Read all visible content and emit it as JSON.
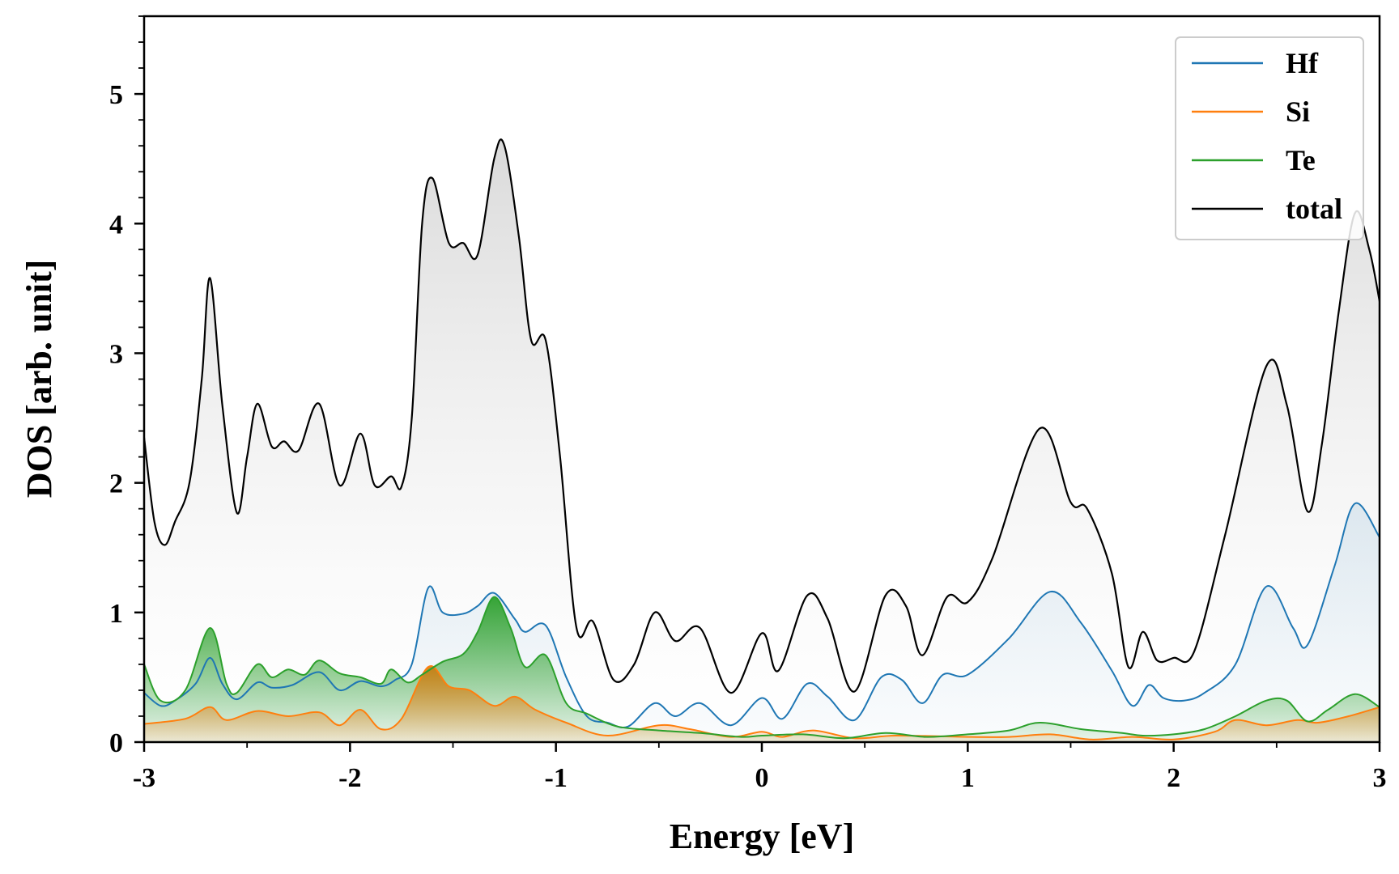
{
  "chart_data": {
    "type": "line",
    "title": "",
    "xlabel": "Energy [eV]",
    "ylabel": "DOS [arb. unit]",
    "xlim": [
      -3,
      3
    ],
    "ylim": [
      0,
      5.6
    ],
    "x_ticks": [
      "-3",
      "-2",
      "-1",
      "0",
      "1",
      "2",
      "3"
    ],
    "y_ticks": [
      "0",
      "1",
      "2",
      "3",
      "4",
      "5"
    ],
    "grid": false,
    "legend_position": "top-right",
    "fill_under_curves": true,
    "series": [
      {
        "name": "Hf",
        "color": "#1f77b4",
        "points": [
          [
            -3.0,
            0.38
          ],
          [
            -2.92,
            0.28
          ],
          [
            -2.85,
            0.32
          ],
          [
            -2.75,
            0.45
          ],
          [
            -2.68,
            0.65
          ],
          [
            -2.62,
            0.45
          ],
          [
            -2.55,
            0.33
          ],
          [
            -2.45,
            0.46
          ],
          [
            -2.38,
            0.42
          ],
          [
            -2.28,
            0.44
          ],
          [
            -2.15,
            0.54
          ],
          [
            -2.05,
            0.4
          ],
          [
            -1.95,
            0.47
          ],
          [
            -1.85,
            0.43
          ],
          [
            -1.78,
            0.48
          ],
          [
            -1.7,
            0.6
          ],
          [
            -1.62,
            1.19
          ],
          [
            -1.55,
            1.0
          ],
          [
            -1.45,
            0.99
          ],
          [
            -1.38,
            1.05
          ],
          [
            -1.3,
            1.15
          ],
          [
            -1.2,
            0.95
          ],
          [
            -1.15,
            0.85
          ],
          [
            -1.05,
            0.9
          ],
          [
            -0.95,
            0.5
          ],
          [
            -0.85,
            0.2
          ],
          [
            -0.75,
            0.15
          ],
          [
            -0.65,
            0.12
          ],
          [
            -0.52,
            0.3
          ],
          [
            -0.42,
            0.2
          ],
          [
            -0.3,
            0.3
          ],
          [
            -0.15,
            0.13
          ],
          [
            0.0,
            0.34
          ],
          [
            0.1,
            0.18
          ],
          [
            0.22,
            0.45
          ],
          [
            0.32,
            0.35
          ],
          [
            0.45,
            0.17
          ],
          [
            0.58,
            0.5
          ],
          [
            0.68,
            0.48
          ],
          [
            0.78,
            0.3
          ],
          [
            0.88,
            0.52
          ],
          [
            1.0,
            0.52
          ],
          [
            1.2,
            0.8
          ],
          [
            1.4,
            1.16
          ],
          [
            1.55,
            0.92
          ],
          [
            1.7,
            0.55
          ],
          [
            1.8,
            0.28
          ],
          [
            1.88,
            0.44
          ],
          [
            1.95,
            0.34
          ],
          [
            2.05,
            0.32
          ],
          [
            2.15,
            0.38
          ],
          [
            2.3,
            0.6
          ],
          [
            2.45,
            1.2
          ],
          [
            2.58,
            0.88
          ],
          [
            2.65,
            0.75
          ],
          [
            2.78,
            1.35
          ],
          [
            2.88,
            1.84
          ],
          [
            3.0,
            1.58
          ]
        ]
      },
      {
        "name": "Si",
        "color": "#ff7f0e",
        "points": [
          [
            -3.0,
            0.14
          ],
          [
            -2.8,
            0.18
          ],
          [
            -2.68,
            0.27
          ],
          [
            -2.6,
            0.17
          ],
          [
            -2.45,
            0.24
          ],
          [
            -2.3,
            0.2
          ],
          [
            -2.15,
            0.23
          ],
          [
            -2.05,
            0.13
          ],
          [
            -1.95,
            0.25
          ],
          [
            -1.85,
            0.1
          ],
          [
            -1.75,
            0.18
          ],
          [
            -1.62,
            0.58
          ],
          [
            -1.52,
            0.43
          ],
          [
            -1.42,
            0.4
          ],
          [
            -1.3,
            0.28
          ],
          [
            -1.2,
            0.35
          ],
          [
            -1.1,
            0.25
          ],
          [
            -0.95,
            0.15
          ],
          [
            -0.75,
            0.05
          ],
          [
            -0.5,
            0.13
          ],
          [
            -0.35,
            0.1
          ],
          [
            -0.15,
            0.04
          ],
          [
            0.0,
            0.08
          ],
          [
            0.1,
            0.04
          ],
          [
            0.25,
            0.09
          ],
          [
            0.45,
            0.03
          ],
          [
            0.65,
            0.05
          ],
          [
            1.0,
            0.04
          ],
          [
            1.2,
            0.04
          ],
          [
            1.4,
            0.06
          ],
          [
            1.6,
            0.02
          ],
          [
            1.8,
            0.04
          ],
          [
            2.0,
            0.02
          ],
          [
            2.2,
            0.08
          ],
          [
            2.3,
            0.17
          ],
          [
            2.45,
            0.13
          ],
          [
            2.6,
            0.17
          ],
          [
            2.7,
            0.15
          ],
          [
            2.85,
            0.2
          ],
          [
            3.0,
            0.27
          ]
        ]
      },
      {
        "name": "Te",
        "color": "#2ca02c",
        "points": [
          [
            -3.0,
            0.6
          ],
          [
            -2.92,
            0.32
          ],
          [
            -2.8,
            0.4
          ],
          [
            -2.68,
            0.88
          ],
          [
            -2.6,
            0.45
          ],
          [
            -2.55,
            0.38
          ],
          [
            -2.45,
            0.6
          ],
          [
            -2.38,
            0.5
          ],
          [
            -2.3,
            0.56
          ],
          [
            -2.22,
            0.52
          ],
          [
            -2.15,
            0.63
          ],
          [
            -2.05,
            0.53
          ],
          [
            -1.95,
            0.5
          ],
          [
            -1.85,
            0.45
          ],
          [
            -1.8,
            0.56
          ],
          [
            -1.72,
            0.46
          ],
          [
            -1.65,
            0.52
          ],
          [
            -1.55,
            0.62
          ],
          [
            -1.45,
            0.68
          ],
          [
            -1.38,
            0.85
          ],
          [
            -1.3,
            1.12
          ],
          [
            -1.22,
            0.88
          ],
          [
            -1.15,
            0.58
          ],
          [
            -1.05,
            0.67
          ],
          [
            -0.95,
            0.3
          ],
          [
            -0.85,
            0.22
          ],
          [
            -0.7,
            0.12
          ],
          [
            -0.5,
            0.09
          ],
          [
            -0.3,
            0.07
          ],
          [
            -0.1,
            0.04
          ],
          [
            0.0,
            0.05
          ],
          [
            0.2,
            0.06
          ],
          [
            0.4,
            0.03
          ],
          [
            0.6,
            0.07
          ],
          [
            0.8,
            0.04
          ],
          [
            1.0,
            0.06
          ],
          [
            1.2,
            0.09
          ],
          [
            1.35,
            0.15
          ],
          [
            1.55,
            0.1
          ],
          [
            1.75,
            0.07
          ],
          [
            1.85,
            0.05
          ],
          [
            2.0,
            0.06
          ],
          [
            2.15,
            0.1
          ],
          [
            2.3,
            0.2
          ],
          [
            2.45,
            0.32
          ],
          [
            2.55,
            0.32
          ],
          [
            2.65,
            0.16
          ],
          [
            2.75,
            0.25
          ],
          [
            2.88,
            0.37
          ],
          [
            3.0,
            0.27
          ]
        ]
      },
      {
        "name": "total",
        "color": "#000000",
        "points": [
          [
            -3.0,
            2.35
          ],
          [
            -2.95,
            1.7
          ],
          [
            -2.9,
            1.52
          ],
          [
            -2.85,
            1.7
          ],
          [
            -2.78,
            2.0
          ],
          [
            -2.72,
            2.8
          ],
          [
            -2.68,
            3.58
          ],
          [
            -2.62,
            2.6
          ],
          [
            -2.55,
            1.77
          ],
          [
            -2.5,
            2.2
          ],
          [
            -2.45,
            2.61
          ],
          [
            -2.38,
            2.28
          ],
          [
            -2.32,
            2.32
          ],
          [
            -2.25,
            2.25
          ],
          [
            -2.15,
            2.61
          ],
          [
            -2.05,
            1.98
          ],
          [
            -1.95,
            2.38
          ],
          [
            -1.88,
            1.98
          ],
          [
            -1.8,
            2.05
          ],
          [
            -1.75,
            1.97
          ],
          [
            -1.7,
            2.5
          ],
          [
            -1.65,
            4.0
          ],
          [
            -1.6,
            4.35
          ],
          [
            -1.52,
            3.85
          ],
          [
            -1.45,
            3.85
          ],
          [
            -1.38,
            3.76
          ],
          [
            -1.3,
            4.5
          ],
          [
            -1.25,
            4.6
          ],
          [
            -1.18,
            3.9
          ],
          [
            -1.12,
            3.1
          ],
          [
            -1.05,
            3.1
          ],
          [
            -0.98,
            2.2
          ],
          [
            -0.9,
            0.88
          ],
          [
            -0.82,
            0.93
          ],
          [
            -0.72,
            0.48
          ],
          [
            -0.62,
            0.6
          ],
          [
            -0.52,
            1.0
          ],
          [
            -0.42,
            0.78
          ],
          [
            -0.3,
            0.88
          ],
          [
            -0.15,
            0.38
          ],
          [
            0.0,
            0.84
          ],
          [
            0.08,
            0.55
          ],
          [
            0.22,
            1.13
          ],
          [
            0.32,
            0.95
          ],
          [
            0.45,
            0.39
          ],
          [
            0.6,
            1.13
          ],
          [
            0.7,
            1.05
          ],
          [
            0.78,
            0.67
          ],
          [
            0.9,
            1.12
          ],
          [
            1.0,
            1.08
          ],
          [
            1.12,
            1.42
          ],
          [
            1.35,
            2.42
          ],
          [
            1.5,
            1.85
          ],
          [
            1.58,
            1.8
          ],
          [
            1.7,
            1.3
          ],
          [
            1.78,
            0.58
          ],
          [
            1.85,
            0.85
          ],
          [
            1.92,
            0.63
          ],
          [
            2.0,
            0.65
          ],
          [
            2.1,
            0.7
          ],
          [
            2.25,
            1.6
          ],
          [
            2.45,
            2.9
          ],
          [
            2.55,
            2.6
          ],
          [
            2.65,
            1.78
          ],
          [
            2.72,
            2.3
          ],
          [
            2.8,
            3.3
          ],
          [
            2.88,
            4.08
          ],
          [
            2.95,
            3.8
          ],
          [
            3.0,
            3.4
          ]
        ]
      }
    ]
  }
}
